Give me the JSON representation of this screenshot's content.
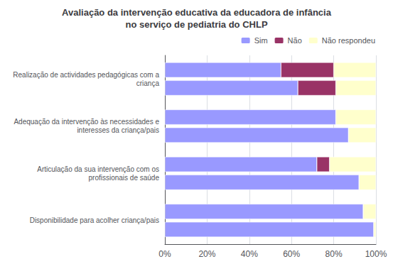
{
  "chart_data": {
    "type": "bar",
    "orientation": "horizontal",
    "stacked": true,
    "title": "Avaliação da intervenção educativa da educadora de infância\nno serviço de pediatria do CHLP",
    "categories": [
      "Realização de actividades pedagógicas com a\ncriança",
      "Adequação da intervenção às necessidades e\ninteresses da criança/pais",
      "Articulação da sua intervenção com os\nprofissionais de saúde",
      "Disponibilidade para acolher criança/pais"
    ],
    "series": [
      {
        "name": "Sim",
        "color": "#9999ff",
        "values": [
          [
            55,
            63
          ],
          [
            81,
            87
          ],
          [
            72,
            92
          ],
          [
            94,
            99
          ]
        ]
      },
      {
        "name": "Não",
        "color": "#993366",
        "values": [
          [
            25,
            18
          ],
          [
            0,
            0
          ],
          [
            6,
            0
          ],
          [
            0,
            0
          ]
        ]
      },
      {
        "name": "Não respondeu",
        "color": "#ffffcc",
        "values": [
          [
            20,
            19
          ],
          [
            19,
            13
          ],
          [
            22,
            8
          ],
          [
            6,
            1
          ]
        ]
      }
    ],
    "xlim": [
      0,
      100
    ],
    "xticks": [
      {
        "value": 0,
        "label": "0%"
      },
      {
        "value": 20,
        "label": "20%"
      },
      {
        "value": 40,
        "label": "40%"
      },
      {
        "value": 60,
        "label": "60%"
      },
      {
        "value": 80,
        "label": "80%"
      },
      {
        "value": 100,
        "label": "100%"
      }
    ],
    "grid": true,
    "legend": "upper right"
  }
}
